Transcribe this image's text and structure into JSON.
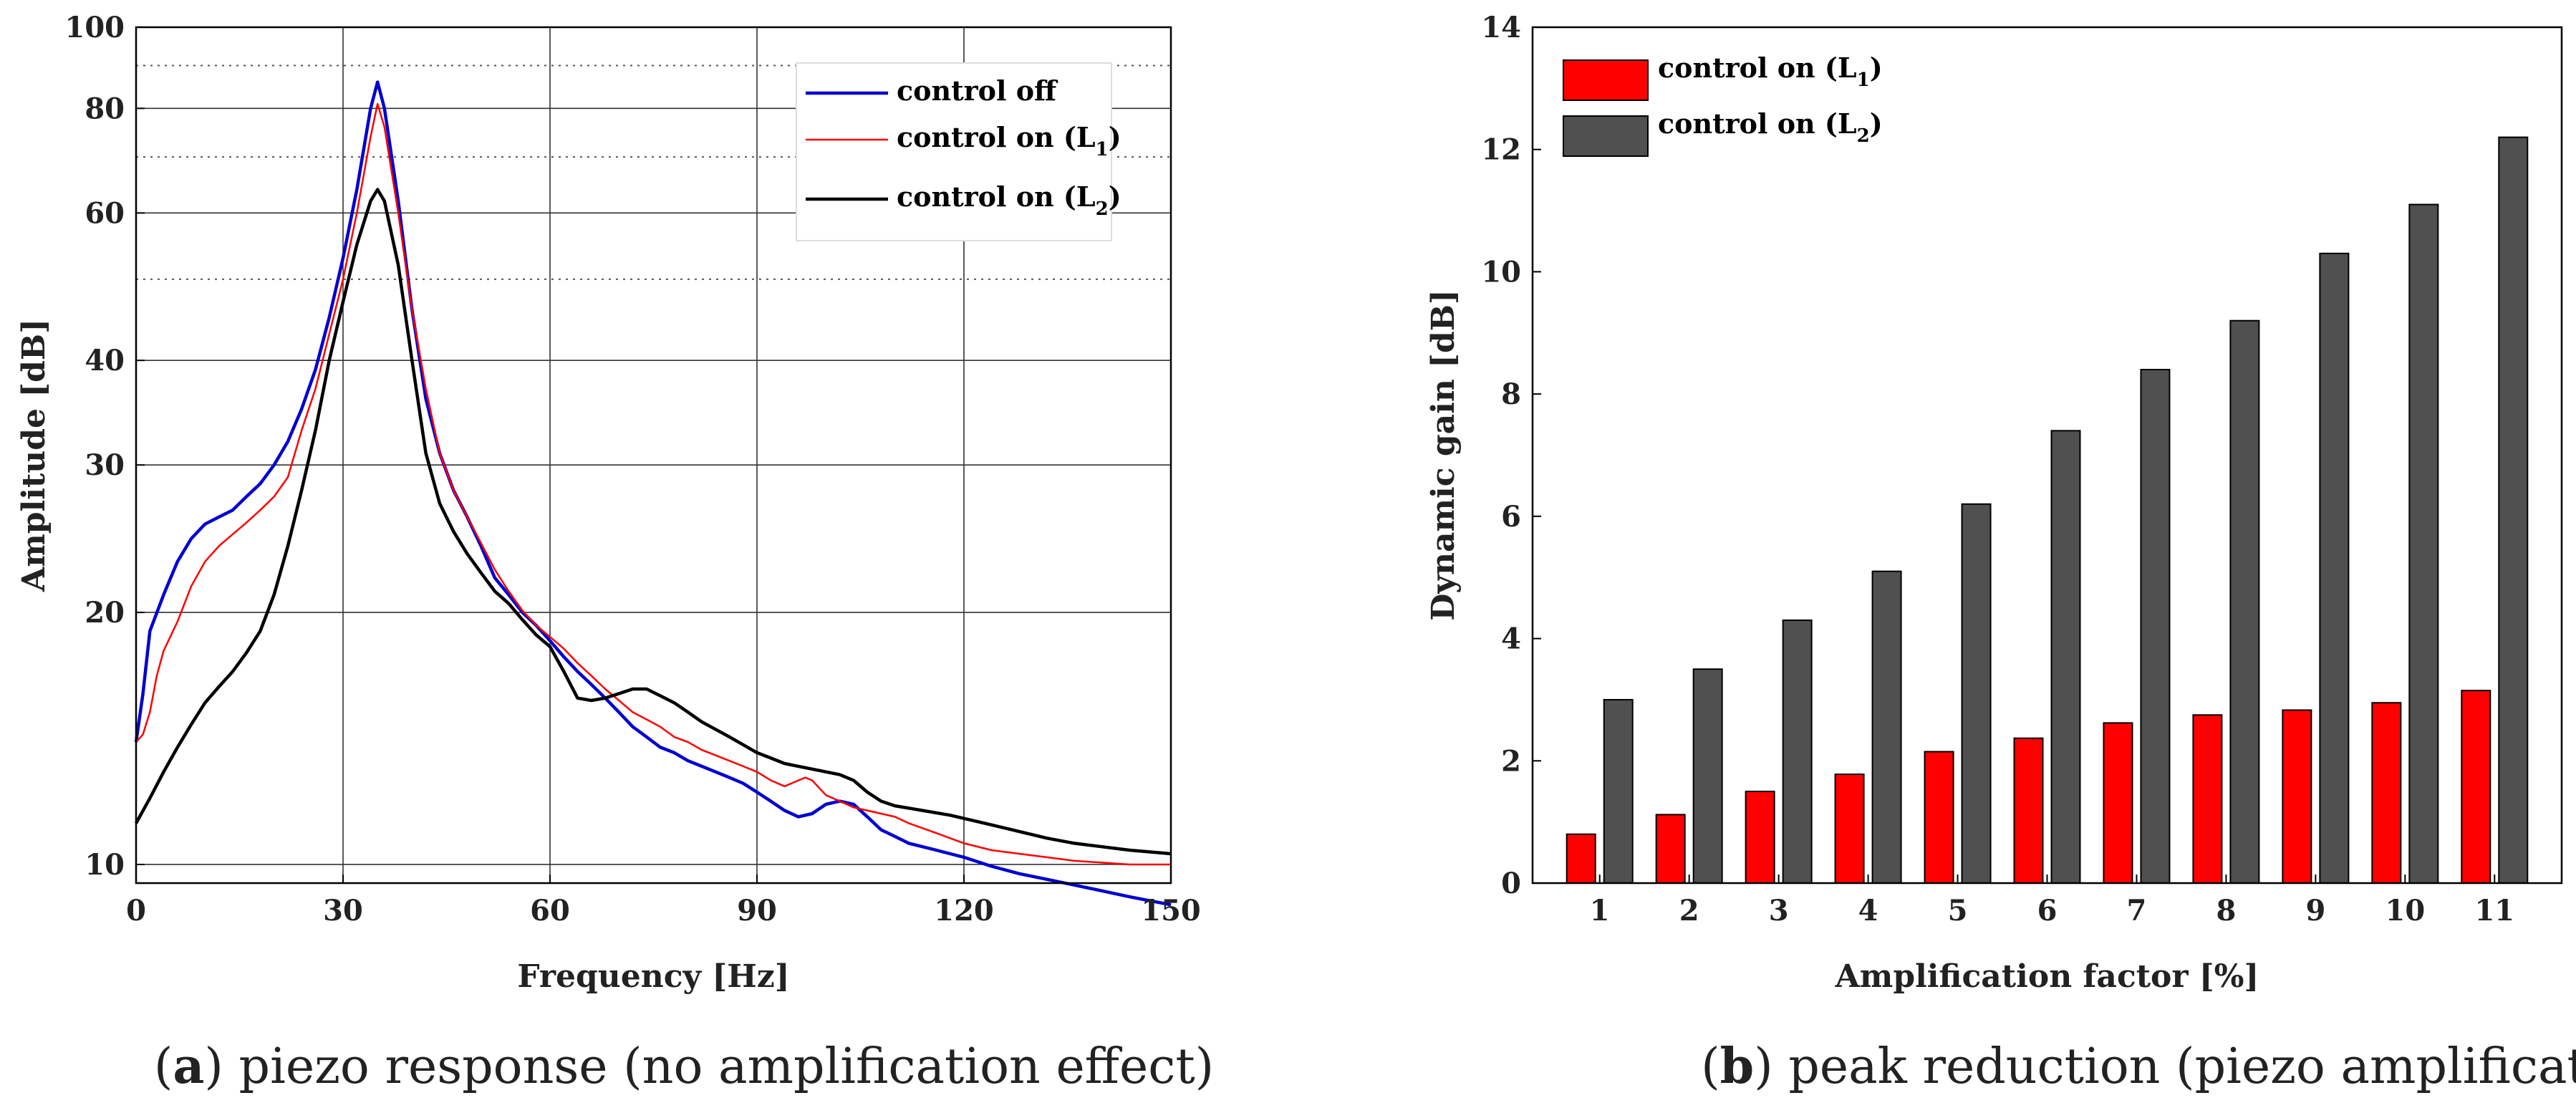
{
  "chart_data": [
    {
      "type": "line",
      "xlabel": "Frequency [Hz]",
      "ylabel": "Amplitude [dB]",
      "xlim": [
        0,
        150
      ],
      "ylim": [
        9.5,
        100
      ],
      "yscale": "log",
      "grid": true,
      "legend": "top-right",
      "x_ticks": [
        0,
        30,
        60,
        90,
        120,
        150
      ],
      "y_ticks": [
        10,
        20,
        30,
        40,
        60,
        80,
        100
      ],
      "caption": {
        "letter": "a",
        "open": "(",
        "close": ") piezo response (no amplification effect)"
      },
      "series": [
        {
          "name": "control off",
          "legend_main": "control off",
          "legend_sub": "",
          "legend_tail": "",
          "color": "#0000d0",
          "points": [
            [
              0,
              14
            ],
            [
              1,
              16
            ],
            [
              2,
              19
            ],
            [
              4,
              21
            ],
            [
              6,
              23
            ],
            [
              8,
              24.5
            ],
            [
              10,
              25.5
            ],
            [
              12,
              26
            ],
            [
              14,
              26.5
            ],
            [
              16,
              27.5
            ],
            [
              18,
              28.5
            ],
            [
              20,
              30
            ],
            [
              22,
              32
            ],
            [
              24,
              35
            ],
            [
              26,
              39
            ],
            [
              28,
              45
            ],
            [
              30,
              53
            ],
            [
              32,
              64
            ],
            [
              34,
              80
            ],
            [
              35,
              86
            ],
            [
              36,
              80
            ],
            [
              38,
              62
            ],
            [
              40,
              46
            ],
            [
              42,
              36
            ],
            [
              44,
              31
            ],
            [
              46,
              28
            ],
            [
              48,
              26
            ],
            [
              50,
              24
            ],
            [
              52,
              22
            ],
            [
              54,
              21
            ],
            [
              56,
              20
            ],
            [
              58,
              19.3
            ],
            [
              60,
              18.5
            ],
            [
              62,
              17.7
            ],
            [
              64,
              17
            ],
            [
              66,
              16.4
            ],
            [
              68,
              15.8
            ],
            [
              70,
              15.2
            ],
            [
              72,
              14.6
            ],
            [
              74,
              14.2
            ],
            [
              76,
              13.8
            ],
            [
              78,
              13.6
            ],
            [
              80,
              13.3
            ],
            [
              82,
              13.1
            ],
            [
              84,
              12.9
            ],
            [
              86,
              12.7
            ],
            [
              88,
              12.5
            ],
            [
              90,
              12.2
            ],
            [
              92,
              11.9
            ],
            [
              94,
              11.6
            ],
            [
              96,
              11.4
            ],
            [
              98,
              11.5
            ],
            [
              100,
              11.8
            ],
            [
              102,
              11.9
            ],
            [
              104,
              11.8
            ],
            [
              106,
              11.4
            ],
            [
              108,
              11
            ],
            [
              110,
              10.8
            ],
            [
              112,
              10.6
            ],
            [
              114,
              10.5
            ],
            [
              116,
              10.4
            ],
            [
              118,
              10.3
            ],
            [
              120,
              10.2
            ],
            [
              124,
              9.95
            ],
            [
              128,
              9.75
            ],
            [
              132,
              9.6
            ],
            [
              136,
              9.45
            ],
            [
              140,
              9.3
            ],
            [
              144,
              9.15
            ],
            [
              150,
              8.95
            ]
          ]
        },
        {
          "name": "control on (L1)",
          "legend_main": "control on (L",
          "legend_sub": "1",
          "legend_tail": ")",
          "color": "#ff0000",
          "points": [
            [
              0,
              14
            ],
            [
              1,
              14.3
            ],
            [
              2,
              15.2
            ],
            [
              3,
              16.8
            ],
            [
              4,
              18
            ],
            [
              6,
              19.5
            ],
            [
              8,
              21.5
            ],
            [
              10,
              23
            ],
            [
              12,
              24
            ],
            [
              14,
              24.8
            ],
            [
              16,
              25.6
            ],
            [
              18,
              26.5
            ],
            [
              20,
              27.5
            ],
            [
              22,
              29
            ],
            [
              24,
              33
            ],
            [
              26,
              37
            ],
            [
              28,
              43
            ],
            [
              30,
              50
            ],
            [
              32,
              60
            ],
            [
              34,
              74
            ],
            [
              35,
              81
            ],
            [
              36,
              76
            ],
            [
              38,
              60
            ],
            [
              40,
              46
            ],
            [
              42,
              37
            ],
            [
              44,
              31
            ],
            [
              46,
              28
            ],
            [
              48,
              26
            ],
            [
              50,
              24.2
            ],
            [
              52,
              22.5
            ],
            [
              54,
              21.2
            ],
            [
              56,
              20.1
            ],
            [
              58,
              19.3
            ],
            [
              60,
              18.7
            ],
            [
              62,
              18.1
            ],
            [
              64,
              17.4
            ],
            [
              66,
              16.8
            ],
            [
              68,
              16.2
            ],
            [
              70,
              15.7
            ],
            [
              72,
              15.2
            ],
            [
              74,
              14.9
            ],
            [
              76,
              14.6
            ],
            [
              78,
              14.2
            ],
            [
              80,
              14
            ],
            [
              82,
              13.7
            ],
            [
              84,
              13.5
            ],
            [
              86,
              13.3
            ],
            [
              88,
              13.1
            ],
            [
              90,
              12.9
            ],
            [
              92,
              12.6
            ],
            [
              94,
              12.4
            ],
            [
              96,
              12.6
            ],
            [
              97,
              12.7
            ],
            [
              98,
              12.6
            ],
            [
              100,
              12.1
            ],
            [
              102,
              11.9
            ],
            [
              104,
              11.7
            ],
            [
              106,
              11.6
            ],
            [
              108,
              11.5
            ],
            [
              110,
              11.4
            ],
            [
              112,
              11.2
            ],
            [
              116,
              10.9
            ],
            [
              120,
              10.6
            ],
            [
              124,
              10.4
            ],
            [
              128,
              10.3
            ],
            [
              132,
              10.2
            ],
            [
              136,
              10.1
            ],
            [
              140,
              10.05
            ],
            [
              144,
              10
            ],
            [
              150,
              10
            ]
          ]
        },
        {
          "name": "control on (L2)",
          "legend_main": "control on (L",
          "legend_sub": "2",
          "legend_tail": ")",
          "color": "#000000",
          "points": [
            [
              0,
              11.2
            ],
            [
              2,
              12
            ],
            [
              4,
              12.9
            ],
            [
              6,
              13.8
            ],
            [
              8,
              14.7
            ],
            [
              10,
              15.6
            ],
            [
              12,
              16.3
            ],
            [
              14,
              17
            ],
            [
              16,
              17.9
            ],
            [
              18,
              19
            ],
            [
              20,
              21
            ],
            [
              22,
              24
            ],
            [
              24,
              28
            ],
            [
              26,
              33
            ],
            [
              28,
              40
            ],
            [
              30,
              47
            ],
            [
              32,
              55
            ],
            [
              34,
              62
            ],
            [
              35,
              64
            ],
            [
              36,
              62
            ],
            [
              38,
              52
            ],
            [
              40,
              40
            ],
            [
              42,
              31
            ],
            [
              44,
              27
            ],
            [
              46,
              25
            ],
            [
              48,
              23.5
            ],
            [
              50,
              22.3
            ],
            [
              52,
              21.2
            ],
            [
              54,
              20.5
            ],
            [
              56,
              19.6
            ],
            [
              58,
              18.8
            ],
            [
              60,
              18.2
            ],
            [
              62,
              17
            ],
            [
              64,
              15.8
            ],
            [
              66,
              15.7
            ],
            [
              68,
              15.8
            ],
            [
              70,
              16
            ],
            [
              72,
              16.2
            ],
            [
              74,
              16.2
            ],
            [
              76,
              15.9
            ],
            [
              78,
              15.6
            ],
            [
              80,
              15.2
            ],
            [
              82,
              14.8
            ],
            [
              84,
              14.5
            ],
            [
              86,
              14.2
            ],
            [
              88,
              13.9
            ],
            [
              90,
              13.6
            ],
            [
              92,
              13.4
            ],
            [
              94,
              13.2
            ],
            [
              96,
              13.1
            ],
            [
              98,
              13
            ],
            [
              100,
              12.9
            ],
            [
              102,
              12.8
            ],
            [
              104,
              12.6
            ],
            [
              106,
              12.2
            ],
            [
              108,
              11.9
            ],
            [
              110,
              11.75
            ],
            [
              114,
              11.6
            ],
            [
              118,
              11.45
            ],
            [
              120,
              11.35
            ],
            [
              124,
              11.15
            ],
            [
              128,
              10.95
            ],
            [
              132,
              10.75
            ],
            [
              136,
              10.6
            ],
            [
              140,
              10.5
            ],
            [
              144,
              10.4
            ],
            [
              150,
              10.3
            ]
          ]
        }
      ]
    },
    {
      "type": "bar",
      "xlabel": "Amplification factor [%]",
      "ylabel": "Dynamic gain [dB]",
      "ylim": [
        0,
        14
      ],
      "grid": false,
      "legend": "top-left",
      "y_ticks": [
        0,
        2,
        4,
        6,
        8,
        10,
        12,
        14
      ],
      "categories": [
        "1",
        "2",
        "3",
        "4",
        "5",
        "6",
        "7",
        "8",
        "9",
        "10",
        "11"
      ],
      "caption": {
        "letter": "b",
        "open": "(",
        "close": ") peak reduction (piezo amplification)"
      },
      "series": [
        {
          "name": "control on (L1)",
          "legend_main": "control on (L",
          "legend_sub": "1",
          "legend_tail": ")",
          "color": "#ff0000",
          "values": [
            0.8,
            1.12,
            1.5,
            1.78,
            2.15,
            2.37,
            2.62,
            2.75,
            2.83,
            2.95,
            3.15
          ]
        },
        {
          "name": "control on (L2)",
          "legend_main": "control on (L",
          "legend_sub": "2",
          "legend_tail": ")",
          "color": "#505050",
          "values": [
            3.0,
            3.5,
            4.3,
            5.1,
            6.2,
            7.4,
            8.4,
            9.2,
            10.3,
            11.1,
            12.2
          ]
        }
      ]
    }
  ]
}
